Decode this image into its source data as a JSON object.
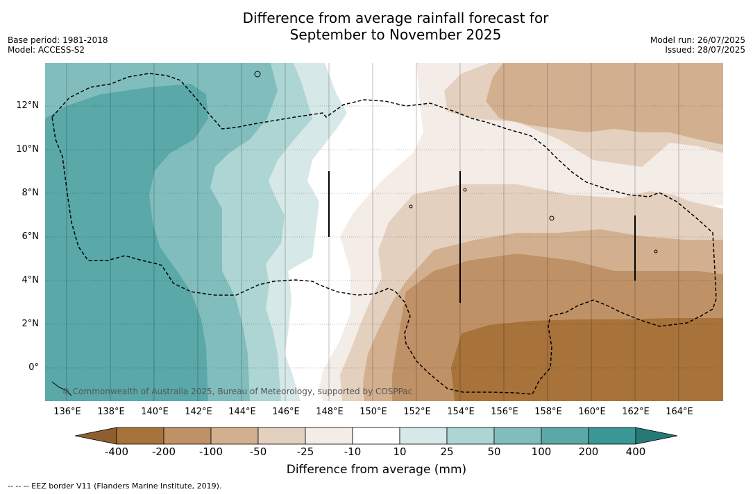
{
  "title_line1": "Difference from average rainfall forecast for",
  "title_line2": "September to November 2025",
  "base_period": "Base period: 1981-2018",
  "model": "Model: ACCESS-S2",
  "model_run": "Model run: 26/07/2025",
  "issued": "Issued: 28/07/2025",
  "lat_labels": [
    "12°N",
    "10°N",
    "8°N",
    "6°N",
    "4°N",
    "2°N",
    "0°"
  ],
  "lon_labels": [
    "136°E",
    "138°E",
    "140°E",
    "142°E",
    "144°E",
    "146°E",
    "148°E",
    "150°E",
    "152°E",
    "154°E",
    "156°E",
    "158°E",
    "160°E",
    "162°E",
    "164°E"
  ],
  "copyright": "© Commonwealth of Australia 2025, Bureau of Meteorology, supported by COSPPac",
  "colorbar": {
    "title": "Difference from average (mm)",
    "ticks": [
      "-400",
      "-200",
      "-100",
      "-50",
      "-25",
      "-10",
      "10",
      "25",
      "50",
      "100",
      "200",
      "400"
    ],
    "colors": [
      "#a8733a",
      "#bf9166",
      "#d2b08f",
      "#e4d0bf",
      "#f4ece6",
      "#ffffff",
      "#d6e8e7",
      "#add5d4",
      "#82bdbd",
      "#5aa8a8",
      "#3a9796"
    ],
    "under_color": "#8e5e2f",
    "over_color": "#257a78"
  },
  "footnote": "-- -- -- EEZ border V11 (Flanders Marine Institute, 2019)."
}
